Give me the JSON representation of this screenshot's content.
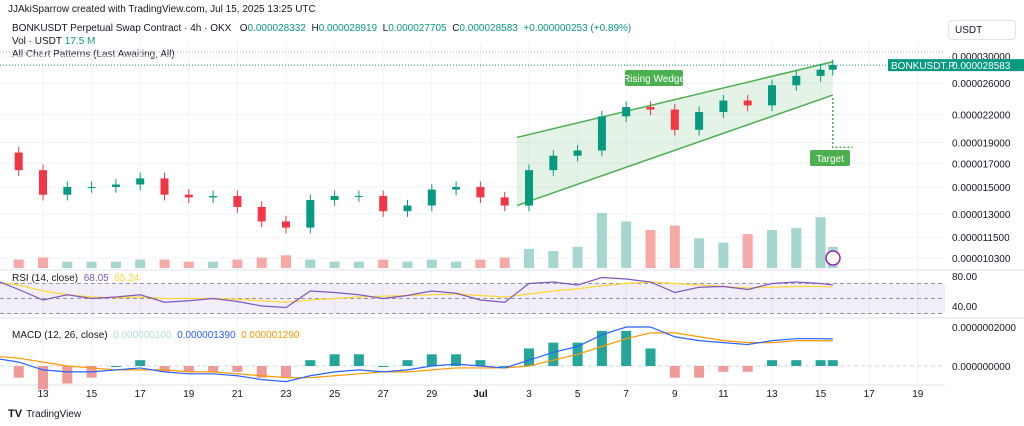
{
  "credit": "JJAkiSparrow created with TradingView.com, Jul 15, 2025 13:25 UTC",
  "legend": {
    "symbol": "BONKUSDT Perpetual Swap Contract · 4h · OKX",
    "o_label": "O",
    "o": "0.000028332",
    "h_label": "H",
    "h": "0.000028919",
    "l_label": "L",
    "l": "0.000027705",
    "c_label": "C",
    "c": "0.000028583",
    "change": "+0.000000253 (+0.89%)",
    "vol_label": "Vol · USDT",
    "vol": "17.5 M",
    "patterns": "All Chart Patterns (Last Awaiting, All)"
  },
  "currency": "USDT",
  "price_tag": {
    "symbol": "BONKUSDT.P",
    "value": "0.000028583"
  },
  "rsi": {
    "label": "RSI (14, close)",
    "value": "68.05",
    "ma": "65.24",
    "ticks": [
      "80.00",
      "40.00"
    ]
  },
  "macd": {
    "label": "MACD (12, 26, close)",
    "hist": "0.000000100",
    "macd": "0.000001390",
    "signal": "0.000001290",
    "ticks": [
      "0.0000002000",
      "0.000000000"
    ]
  },
  "footer": "TradingView",
  "colors": {
    "up": "#089981",
    "down": "#f23645",
    "pattern": "#4caf50",
    "rsi": "#7e57c2",
    "signal": "#fdd835"
  },
  "chart_data": {
    "type": "candlestick",
    "scale": "log",
    "y_ticks": [
      "0.000030000",
      "0.000026000",
      "0.000022000",
      "0.000019000",
      "0.000017000",
      "0.000015000",
      "0.000013000",
      "0.000011500",
      "0.000010300"
    ],
    "y_tick_values": [
      30,
      26,
      22,
      19,
      17,
      15,
      13,
      11.5,
      10.3
    ],
    "y_unit": "1e-6 USDT",
    "x_ticks": [
      "13",
      "15",
      "17",
      "19",
      "21",
      "23",
      "25",
      "27",
      "29",
      "Jul",
      "3",
      "5",
      "7",
      "9",
      "11",
      "13",
      "15",
      "17",
      "19"
    ],
    "x_tick_days": [
      0,
      2,
      4,
      6,
      8,
      10,
      12,
      14,
      16,
      18,
      20,
      22,
      24,
      26,
      28,
      30,
      32,
      34,
      36
    ],
    "candle_days": [
      -2,
      -1,
      0,
      1,
      2,
      3,
      4,
      5,
      6,
      7,
      8,
      9,
      10,
      11,
      12,
      13,
      14,
      15,
      16,
      17,
      18,
      19,
      20,
      21,
      22,
      23,
      24,
      25,
      26,
      27,
      28,
      29,
      30,
      31,
      32,
      32.5
    ],
    "closes": [
      18.0,
      16.4,
      14.4,
      15.0,
      15.0,
      15.2,
      15.7,
      14.4,
      14.2,
      14.3,
      13.5,
      12.5,
      12.1,
      14.0,
      14.3,
      14.3,
      13.2,
      13.6,
      14.8,
      15.0,
      14.2,
      13.6,
      16.4,
      17.7,
      18.2,
      21.8,
      22.9,
      22.6,
      20.3,
      22.3,
      23.7,
      23.1,
      25.7,
      27.0,
      27.9,
      28.583
    ],
    "volumes": [
      3,
      4,
      5,
      3,
      3,
      3,
      4,
      4,
      3,
      3,
      4,
      5,
      6,
      4,
      3,
      3,
      4,
      3,
      4,
      3,
      4,
      5,
      9,
      8,
      10,
      26,
      22,
      18,
      20,
      14,
      12,
      16,
      18,
      19,
      24,
      10
    ],
    "rsi": [
      75,
      62,
      48,
      55,
      50,
      52,
      55,
      45,
      47,
      50,
      46,
      40,
      38,
      60,
      58,
      55,
      50,
      54,
      60,
      57,
      48,
      45,
      70,
      72,
      68,
      78,
      76,
      72,
      58,
      65,
      66,
      62,
      70,
      72,
      70,
      68.05
    ],
    "rsi_ma": [
      72,
      68,
      60,
      55,
      52,
      51,
      52,
      50,
      50,
      50,
      49,
      47,
      45,
      48,
      50,
      52,
      53,
      54,
      55,
      56,
      54,
      52,
      56,
      60,
      63,
      67,
      70,
      72,
      70,
      68,
      66,
      64,
      65,
      66,
      66,
      65.24
    ],
    "macd": [
      0.4,
      0.2,
      -0.2,
      -0.3,
      -0.3,
      -0.2,
      -0.1,
      -0.3,
      -0.4,
      -0.4,
      -0.5,
      -0.7,
      -0.8,
      -0.5,
      -0.3,
      -0.2,
      -0.3,
      -0.2,
      0.0,
      0.1,
      0.0,
      -0.1,
      0.3,
      0.7,
      1.0,
      1.6,
      2.0,
      2.0,
      1.5,
      1.3,
      1.2,
      1.1,
      1.3,
      1.4,
      1.4,
      1.39
    ],
    "signal": [
      0.5,
      0.4,
      0.2,
      0.0,
      -0.1,
      -0.2,
      -0.2,
      -0.2,
      -0.3,
      -0.3,
      -0.4,
      -0.5,
      -0.6,
      -0.6,
      -0.5,
      -0.4,
      -0.3,
      -0.3,
      -0.2,
      -0.1,
      -0.1,
      -0.1,
      0.0,
      0.3,
      0.6,
      1.0,
      1.4,
      1.7,
      1.7,
      1.5,
      1.3,
      1.2,
      1.2,
      1.3,
      1.3,
      1.29
    ],
    "pattern": {
      "name": "Rising Wedge",
      "target_label": "Target",
      "upper": [
        [
          19.5,
          19.5
        ],
        [
          32.5,
          29.1
        ]
      ],
      "lower": [
        [
          19.5,
          13.6
        ],
        [
          32.5,
          24.4
        ]
      ],
      "target_price": 18.5
    }
  }
}
